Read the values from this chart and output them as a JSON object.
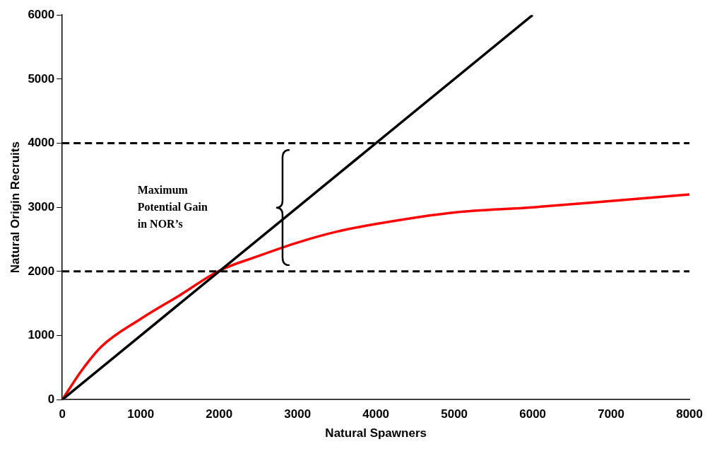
{
  "chart_data": {
    "type": "line",
    "xlabel": "Natural Spawners",
    "ylabel": "Natural Origin Recruits",
    "xlim": [
      0,
      8000
    ],
    "xticks": [
      0,
      1000,
      2000,
      3000,
      4000,
      5000,
      6000,
      7000,
      8000
    ],
    "ylim": [
      0,
      6000
    ],
    "yticks": [
      0,
      1000,
      2000,
      3000,
      4000,
      5000,
      6000
    ],
    "grid": false,
    "legend": false,
    "marker": "none",
    "line_style": "solid",
    "series": [
      {
        "color": "#000000",
        "x": [
          0,
          6000
        ],
        "values": [
          0,
          6000
        ]
      },
      {
        "color": "#ff0000",
        "x": [
          0,
          250,
          500,
          1000,
          1500,
          2000,
          2500,
          3000,
          3500,
          4000,
          5000,
          6000,
          7000,
          8000
        ],
        "values": [
          0,
          460,
          830,
          1260,
          1630,
          2010,
          2240,
          2450,
          2620,
          2740,
          2920,
          3000,
          3100,
          3200
        ]
      }
    ],
    "ref_lines": [
      {
        "axis": "y",
        "value": 4000,
        "color": "#000000",
        "line_style": "dashed"
      },
      {
        "axis": "y",
        "value": 2000,
        "color": "#000000",
        "line_style": "dashed"
      }
    ],
    "annotations": [
      "Maximum\nPotential Gain\nin NOR’s"
    ]
  }
}
